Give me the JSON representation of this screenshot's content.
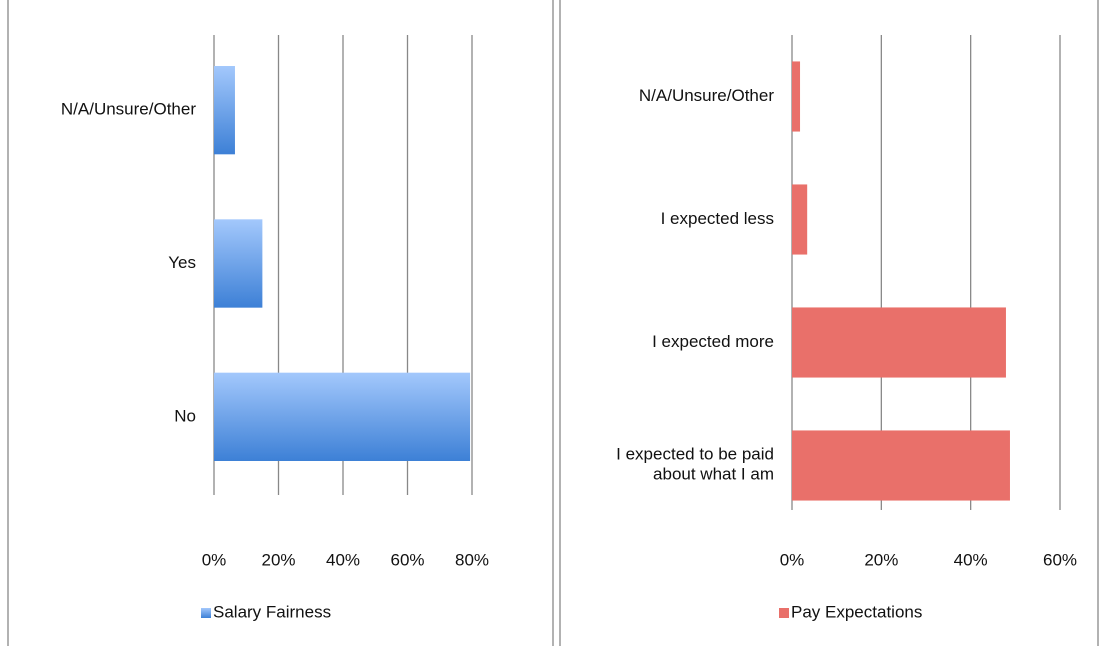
{
  "chart_data": [
    {
      "type": "bar",
      "orientation": "horizontal",
      "categories": [
        "N/A/Unsure/Other",
        "Yes",
        "No"
      ],
      "series": [
        {
          "name": "Salary Fairness",
          "color": "#5a97e6",
          "values": [
            6.5,
            15,
            79.4
          ]
        }
      ],
      "xlim": [
        0,
        80
      ],
      "xticks": [
        {
          "value": 0,
          "label": "0%"
        },
        {
          "value": 20,
          "label": "20%"
        },
        {
          "value": 40,
          "label": "40%"
        },
        {
          "value": 60,
          "label": "60%"
        },
        {
          "value": 80,
          "label": "80%"
        }
      ],
      "grid": true,
      "gradient": true,
      "legend": "bottom"
    },
    {
      "type": "bar",
      "orientation": "horizontal",
      "categories": [
        "N/A/Unsure/Other",
        "I expected less",
        "I expected more",
        "I expected to be paid about what I am"
      ],
      "series": [
        {
          "name": "Pay Expectations",
          "color": "#e9706a",
          "values": [
            1.8,
            3.4,
            47.9,
            48.8
          ]
        }
      ],
      "xlim": [
        0,
        60
      ],
      "xticks": [
        {
          "value": 0,
          "label": "0%"
        },
        {
          "value": 20,
          "label": "20%"
        },
        {
          "value": 40,
          "label": "40%"
        },
        {
          "value": 60,
          "label": "60%"
        }
      ],
      "grid": true,
      "gradient": false,
      "legend": "bottom"
    }
  ]
}
